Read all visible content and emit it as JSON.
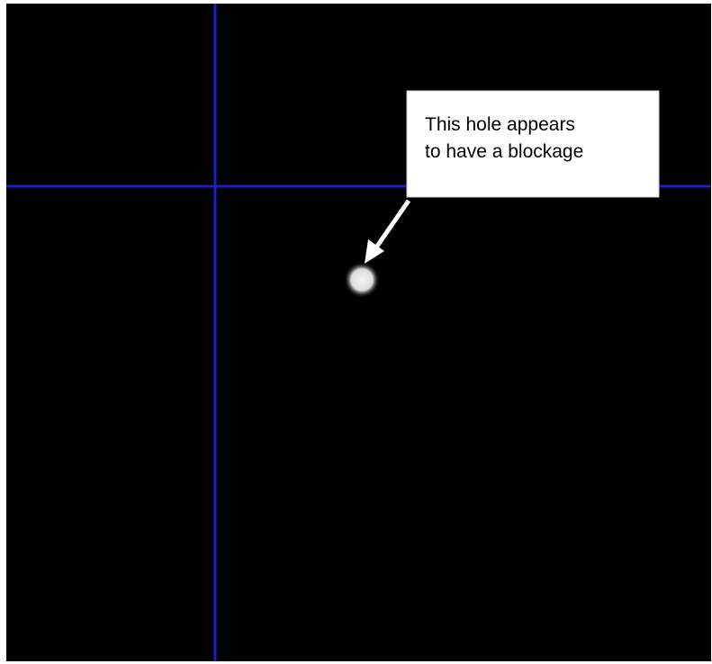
{
  "annotation": {
    "lines": [
      "This hole appears",
      "to have a blockage"
    ]
  }
}
